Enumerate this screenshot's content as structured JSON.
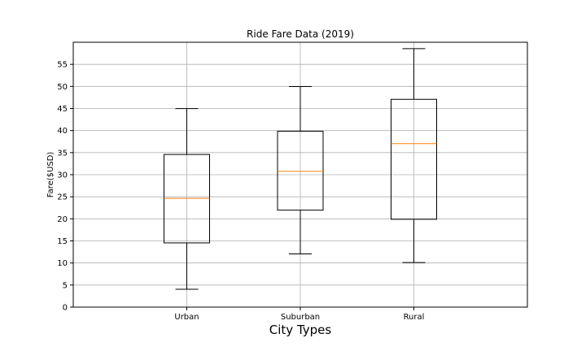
{
  "chart_data": {
    "type": "box",
    "title": "Ride Fare Data (2019)",
    "xlabel": "City Types",
    "ylabel": "Fare($USD)",
    "ylim": [
      0,
      60
    ],
    "yticks": [
      0,
      5,
      10,
      15,
      20,
      25,
      30,
      35,
      40,
      45,
      50,
      55
    ],
    "grid": true,
    "categories": [
      "Urban",
      "Suburban",
      "Rural"
    ],
    "boxes": [
      {
        "category": "Urban",
        "whisker_low": 4.05,
        "q1": 14.55,
        "median": 24.64,
        "q3": 34.58,
        "whisker_high": 44.97
      },
      {
        "category": "Suburban",
        "whisker_low": 12.05,
        "q1": 21.97,
        "median": 30.75,
        "q3": 39.83,
        "whisker_high": 49.96
      },
      {
        "category": "Rural",
        "whisker_low": 10.11,
        "q1": 19.9,
        "median": 37.05,
        "q3": 47.07,
        "whisker_high": 58.55
      }
    ],
    "colors": {
      "box": "#000000",
      "median": "#ff7f0e",
      "grid": "#b0b0b0"
    }
  }
}
